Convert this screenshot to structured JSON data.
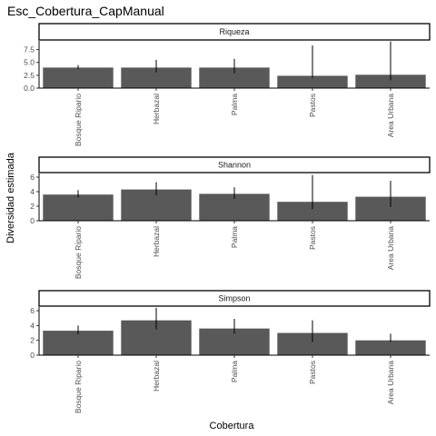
{
  "chart_data": {
    "type": "bar",
    "title": "Esc_Cobertura_CapManual",
    "xlabel": "Cobertura",
    "ylabel": "Diversidad estimada",
    "categories": [
      "Bosque Ripario",
      "Herbazal",
      "Palma",
      "Pastos",
      "Area Urbana"
    ],
    "bar_color": "#595959",
    "grid": false,
    "panels": [
      {
        "name": "Riqueza",
        "ylim": [
          0,
          9.2
        ],
        "yticks": [
          0.0,
          2.5,
          5.0,
          7.5
        ],
        "ytick_labels": [
          "0.0",
          "2.5",
          "5.0",
          "7.5"
        ],
        "values": [
          4.0,
          4.0,
          4.0,
          2.4,
          2.6
        ],
        "error_low": [
          3.7,
          3.1,
          2.9,
          2.0,
          1.5
        ],
        "error_high": [
          4.5,
          5.5,
          5.7,
          8.3,
          9.1
        ]
      },
      {
        "name": "Shannon",
        "ylim": [
          0,
          6.5
        ],
        "yticks": [
          0,
          2,
          4,
          6
        ],
        "ytick_labels": [
          "0",
          "2",
          "4",
          "6"
        ],
        "values": [
          3.6,
          4.3,
          3.7,
          2.6,
          3.3
        ],
        "error_low": [
          3.2,
          3.5,
          3.0,
          1.6,
          1.9
        ],
        "error_high": [
          4.2,
          5.3,
          4.6,
          6.3,
          5.5
        ]
      },
      {
        "name": "Simpson",
        "ylim": [
          0,
          6.5
        ],
        "yticks": [
          0,
          2,
          4,
          6
        ],
        "ytick_labels": [
          "0",
          "2",
          "4",
          "6"
        ],
        "values": [
          3.3,
          4.7,
          3.6,
          3.0,
          2.0
        ],
        "error_low": [
          2.8,
          3.5,
          2.9,
          1.8,
          1.8
        ],
        "error_high": [
          4.0,
          6.4,
          4.9,
          4.7,
          2.9
        ]
      }
    ]
  }
}
